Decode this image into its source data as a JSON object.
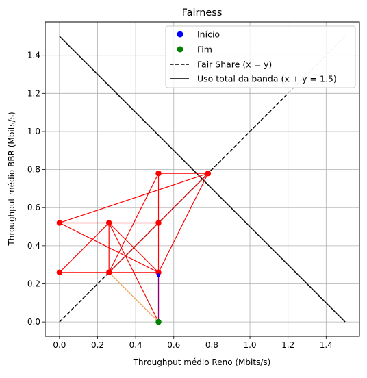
{
  "chart_data": {
    "type": "scatter",
    "title": "Fairness",
    "xlabel": "Throughput médio Reno (Mbits/s)",
    "ylabel": "Throughput médio BBR (Mbits/s)",
    "xlim": [
      -0.075,
      1.575
    ],
    "ylim": [
      -0.075,
      1.575
    ],
    "xticks": [
      0.0,
      0.2,
      0.4,
      0.6,
      0.8,
      1.0,
      1.2,
      1.4
    ],
    "yticks": [
      0.0,
      0.2,
      0.4,
      0.6,
      0.8,
      1.0,
      1.2,
      1.4
    ],
    "xtick_labels": [
      "0.0",
      "0.2",
      "0.4",
      "0.6",
      "0.8",
      "1.0",
      "1.2",
      "1.4"
    ],
    "ytick_labels": [
      "0.0",
      "0.2",
      "0.4",
      "0.6",
      "0.8",
      "1.0",
      "1.2",
      "1.4"
    ],
    "grid": true,
    "legend_position": "top-right",
    "legend": [
      {
        "label": "Início",
        "kind": "marker",
        "color": "#0000ff"
      },
      {
        "label": "Fim",
        "kind": "marker",
        "color": "#008000"
      },
      {
        "label": "Fair Share (x = y)",
        "kind": "dashed",
        "color": "#000000"
      },
      {
        "label": "Uso total da banda (x + y = 1.5)",
        "kind": "solid",
        "color": "#000000"
      }
    ],
    "reference_lines": [
      {
        "name": "Fair Share (x = y)",
        "style": "dashed",
        "color": "#000000",
        "x": [
          0,
          1.5
        ],
        "y": [
          0,
          1.5
        ]
      },
      {
        "name": "Uso total da banda (x + y = 1.5)",
        "style": "solid",
        "color": "#000000",
        "x": [
          0,
          1.5
        ],
        "y": [
          1.5,
          0
        ]
      }
    ],
    "trajectories": [
      {
        "color": "#ff0000",
        "points": [
          [
            0.26,
            0.26
          ],
          [
            0.52,
            0.26
          ],
          [
            0.52,
            0.52
          ],
          [
            0.26,
            0.52
          ],
          [
            0.26,
            0.26
          ],
          [
            0.52,
            0.26
          ],
          [
            0.0,
            0.52
          ],
          [
            0.52,
            0.52
          ],
          [
            0.52,
            0.26
          ],
          [
            0.26,
            0.52
          ],
          [
            0.52,
            0.26
          ],
          [
            0.0,
            0.26
          ],
          [
            0.26,
            0.52
          ],
          [
            0.0,
            0.52
          ],
          [
            0.52,
            0.26
          ],
          [
            0.26,
            0.26
          ],
          [
            0.52,
            0.78
          ],
          [
            0.78,
            0.78
          ],
          [
            0.0,
            0.52
          ],
          [
            0.26,
            0.52
          ],
          [
            0.52,
            0.26
          ],
          [
            0.26,
            0.52
          ],
          [
            0.52,
            0.0
          ],
          [
            0.52,
            0.26
          ],
          [
            0.26,
            0.26
          ],
          [
            0.52,
            0.78
          ],
          [
            0.52,
            0.26
          ],
          [
            0.0,
            0.26
          ],
          [
            0.52,
            0.26
          ],
          [
            0.0,
            0.52
          ],
          [
            0.52,
            0.52
          ],
          [
            0.26,
            0.26
          ],
          [
            0.78,
            0.78
          ],
          [
            0.52,
            0.26
          ]
        ]
      },
      {
        "color": "#f0a050",
        "points": [
          [
            0.26,
            0.26
          ],
          [
            0.52,
            0.0
          ]
        ]
      },
      {
        "color": "#800080",
        "points": [
          [
            0.52,
            0.0
          ],
          [
            0.52,
            0.26
          ]
        ]
      }
    ],
    "red_markers": [
      [
        0.0,
        0.26
      ],
      [
        0.0,
        0.52
      ],
      [
        0.26,
        0.26
      ],
      [
        0.26,
        0.52
      ],
      [
        0.52,
        0.26
      ],
      [
        0.52,
        0.52
      ],
      [
        0.52,
        0.78
      ],
      [
        0.78,
        0.78
      ]
    ],
    "start_point": {
      "x": 0.52,
      "y": 0.26,
      "color": "#0000ff"
    },
    "end_point": {
      "x": 0.52,
      "y": 0.0,
      "color": "#008000"
    }
  }
}
